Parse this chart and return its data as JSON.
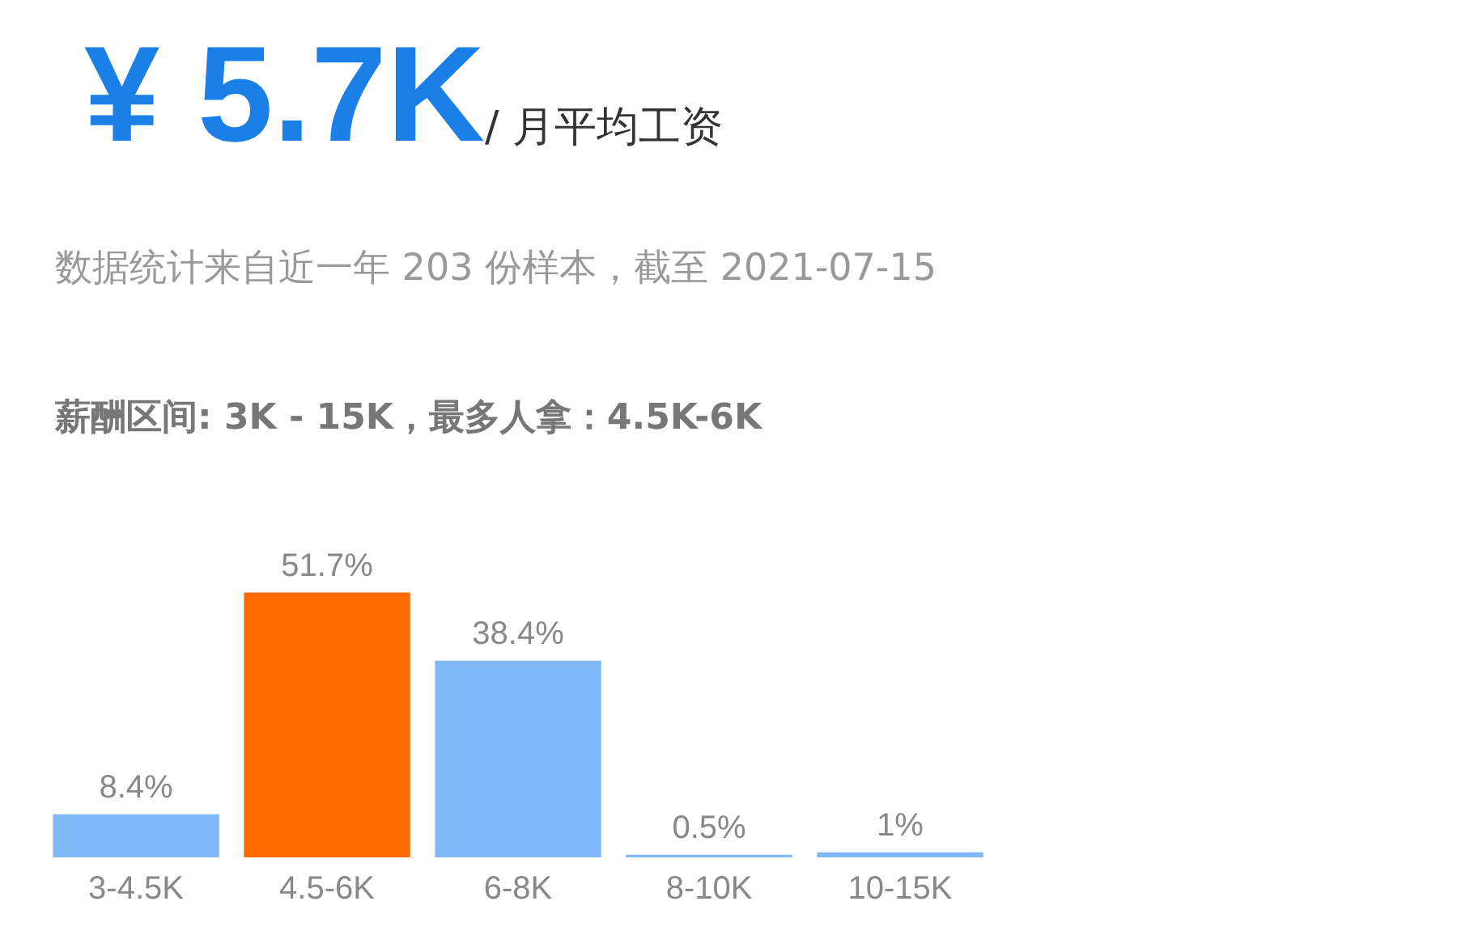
{
  "chart_data": {
    "type": "bar",
    "title": "¥ 5.7K",
    "subtitle": "/ 月平均工资",
    "annotations": [
      "数据统计来自近一年 203 份样本，截至 2021-07-15",
      "薪酬区间: 3K - 15K，最多人拿：4.5K-6K"
    ],
    "categories": [
      "3-4.5K",
      "4.5-6K",
      "6-8K",
      "8-10K",
      "10-15K"
    ],
    "values": [
      8.4,
      51.7,
      38.4,
      0.5,
      1
    ],
    "colors": [
      "#7fb8f7",
      "#ff6a00",
      "#7fb8f7",
      "#7fb8f7",
      "#7fb8f7"
    ],
    "value_labels": [
      "8.4%",
      "51.7%",
      "38.4%",
      "0.5%",
      "1%"
    ],
    "grid": false,
    "legend": false
  }
}
